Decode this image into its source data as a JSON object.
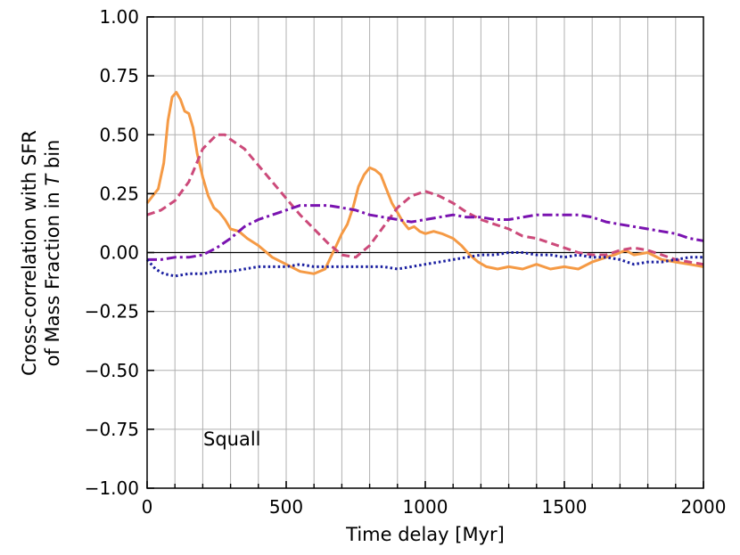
{
  "chart_data": {
    "type": "line",
    "xlabel": "Time delay [Myr]",
    "ylabel_line1": "Cross-correlation with SFR",
    "ylabel_line2_prefix": "of Mass Fraction in ",
    "ylabel_line2_symbol": "T",
    "ylabel_line2_suffix": " bin",
    "annotation": "Squall",
    "xlim": [
      0,
      2000
    ],
    "ylim": [
      -1.0,
      1.0
    ],
    "xticks": [
      0,
      500,
      1000,
      1500,
      2000
    ],
    "xtick_labels": [
      "0",
      "500",
      "1000",
      "1500",
      "2000"
    ],
    "x_minor_step": 100,
    "yticks": [
      -1.0,
      -0.75,
      -0.5,
      -0.25,
      0.0,
      0.25,
      0.5,
      0.75,
      1.0
    ],
    "ytick_labels": [
      "−1.00",
      "−0.75",
      "−0.50",
      "−0.25",
      "0.00",
      "0.25",
      "0.50",
      "0.75",
      "1.00"
    ],
    "grid": true,
    "zero_line": true,
    "series": [
      {
        "style": "solid",
        "color": "#f59a45",
        "x": [
          0,
          20,
          40,
          60,
          75,
          90,
          105,
          120,
          135,
          150,
          165,
          180,
          200,
          220,
          240,
          260,
          280,
          300,
          330,
          360,
          400,
          450,
          500,
          550,
          600,
          640,
          660,
          680,
          700,
          720,
          740,
          760,
          780,
          800,
          820,
          840,
          860,
          880,
          900,
          920,
          940,
          960,
          980,
          1000,
          1030,
          1060,
          1100,
          1130,
          1160,
          1190,
          1220,
          1260,
          1300,
          1350,
          1400,
          1450,
          1500,
          1550,
          1600,
          1650,
          1680,
          1700,
          1720,
          1750,
          1800,
          1850,
          1900,
          1950,
          2000
        ],
        "y": [
          0.21,
          0.24,
          0.27,
          0.38,
          0.56,
          0.66,
          0.68,
          0.65,
          0.6,
          0.59,
          0.53,
          0.42,
          0.32,
          0.24,
          0.19,
          0.17,
          0.14,
          0.1,
          0.09,
          0.06,
          0.03,
          -0.02,
          -0.05,
          -0.08,
          -0.09,
          -0.07,
          -0.02,
          0.03,
          0.08,
          0.12,
          0.19,
          0.28,
          0.33,
          0.36,
          0.35,
          0.33,
          0.27,
          0.21,
          0.17,
          0.13,
          0.1,
          0.11,
          0.09,
          0.08,
          0.09,
          0.08,
          0.06,
          0.03,
          -0.01,
          -0.04,
          -0.06,
          -0.07,
          -0.06,
          -0.07,
          -0.05,
          -0.07,
          -0.06,
          -0.07,
          -0.04,
          -0.02,
          -0.01,
          0.0,
          0.01,
          -0.01,
          0.0,
          -0.03,
          -0.04,
          -0.05,
          -0.06
        ]
      },
      {
        "style": "dashed",
        "color": "#cc4a7a",
        "x": [
          0,
          50,
          100,
          150,
          200,
          250,
          280,
          300,
          350,
          400,
          450,
          500,
          550,
          600,
          650,
          700,
          750,
          800,
          850,
          900,
          950,
          1000,
          1050,
          1100,
          1150,
          1200,
          1250,
          1300,
          1350,
          1400,
          1450,
          1500,
          1550,
          1600,
          1650,
          1700,
          1750,
          1800,
          1850,
          1900,
          1950,
          2000
        ],
        "y": [
          0.16,
          0.18,
          0.22,
          0.3,
          0.44,
          0.5,
          0.5,
          0.48,
          0.44,
          0.37,
          0.3,
          0.23,
          0.16,
          0.1,
          0.04,
          -0.01,
          -0.02,
          0.03,
          0.11,
          0.19,
          0.24,
          0.26,
          0.24,
          0.21,
          0.17,
          0.14,
          0.12,
          0.1,
          0.07,
          0.06,
          0.04,
          0.02,
          0.0,
          -0.01,
          -0.01,
          0.01,
          0.02,
          0.01,
          -0.01,
          -0.03,
          -0.04,
          -0.05
        ]
      },
      {
        "style": "dashdot",
        "color": "#7a13b0",
        "x": [
          0,
          50,
          100,
          150,
          200,
          250,
          300,
          350,
          400,
          450,
          500,
          550,
          600,
          650,
          700,
          750,
          800,
          850,
          900,
          950,
          1000,
          1050,
          1100,
          1150,
          1200,
          1250,
          1300,
          1350,
          1400,
          1450,
          1500,
          1550,
          1600,
          1650,
          1700,
          1750,
          1800,
          1850,
          1900,
          1950,
          2000
        ],
        "y": [
          -0.03,
          -0.03,
          -0.02,
          -0.02,
          -0.01,
          0.02,
          0.06,
          0.11,
          0.14,
          0.16,
          0.18,
          0.2,
          0.2,
          0.2,
          0.19,
          0.18,
          0.16,
          0.15,
          0.14,
          0.13,
          0.14,
          0.15,
          0.16,
          0.15,
          0.15,
          0.14,
          0.14,
          0.15,
          0.16,
          0.16,
          0.16,
          0.16,
          0.15,
          0.13,
          0.12,
          0.11,
          0.1,
          0.09,
          0.08,
          0.06,
          0.05
        ]
      },
      {
        "style": "dotted",
        "color": "#1a1fa0",
        "x": [
          0,
          30,
          60,
          100,
          150,
          200,
          250,
          300,
          350,
          400,
          450,
          500,
          550,
          600,
          650,
          700,
          750,
          800,
          850,
          900,
          950,
          1000,
          1050,
          1100,
          1150,
          1200,
          1250,
          1300,
          1350,
          1400,
          1450,
          1500,
          1550,
          1600,
          1650,
          1700,
          1750,
          1800,
          1850,
          1900,
          1950,
          2000
        ],
        "y": [
          -0.03,
          -0.07,
          -0.09,
          -0.1,
          -0.09,
          -0.09,
          -0.08,
          -0.08,
          -0.07,
          -0.06,
          -0.06,
          -0.06,
          -0.05,
          -0.06,
          -0.06,
          -0.06,
          -0.06,
          -0.06,
          -0.06,
          -0.07,
          -0.06,
          -0.05,
          -0.04,
          -0.03,
          -0.02,
          -0.01,
          -0.01,
          0.0,
          0.0,
          -0.01,
          -0.01,
          -0.02,
          -0.01,
          -0.02,
          -0.02,
          -0.03,
          -0.05,
          -0.04,
          -0.04,
          -0.03,
          -0.02,
          -0.02
        ]
      }
    ]
  }
}
